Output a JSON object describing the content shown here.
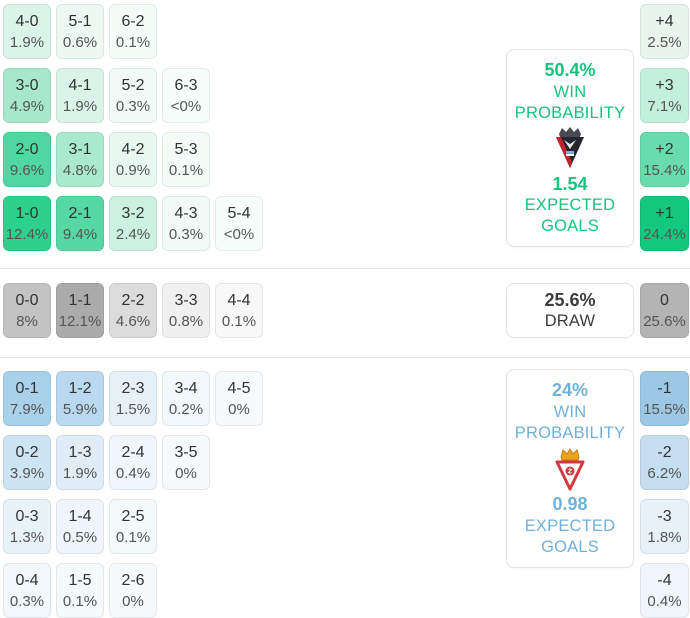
{
  "chart_data": {
    "type": "heatmap",
    "subject": "correct score and goal difference probability matrix",
    "home": {
      "win_probability_pct": 50.4,
      "expected_goals": 1.54,
      "scorelines": {
        "4-0": "1.9%",
        "5-1": "0.6%",
        "6-2": "0.1%",
        "3-0": "4.9%",
        "4-1": "1.9%",
        "5-2": "0.3%",
        "6-3": "<0%",
        "2-0": "9.6%",
        "3-1": "4.8%",
        "4-2": "0.9%",
        "5-3": "0.1%",
        "1-0": "12.4%",
        "2-1": "9.4%",
        "3-2": "2.4%",
        "4-3": "0.3%",
        "5-4": "<0%"
      },
      "goal_difference": {
        "+4": "2.5%",
        "+3": "7.1%",
        "+2": "15.4%",
        "+1": "24.4%"
      }
    },
    "draw": {
      "probability_pct": 25.6,
      "scorelines": {
        "0-0": "8%",
        "1-1": "12.1%",
        "2-2": "4.6%",
        "3-3": "0.8%",
        "4-4": "0.1%"
      },
      "goal_difference": {
        "0": "25.6%"
      }
    },
    "away": {
      "win_probability_pct": 24,
      "expected_goals": 0.98,
      "scorelines": {
        "0-1": "7.9%",
        "1-2": "5.9%",
        "2-3": "1.5%",
        "3-4": "0.2%",
        "4-5": "0%",
        "0-2": "3.9%",
        "1-3": "1.9%",
        "2-4": "0.4%",
        "3-5": "0%",
        "0-3": "1.3%",
        "1-4": "0.5%",
        "2-5": "0.1%",
        "0-4": "0.3%",
        "1-5": "0.1%",
        "2-6": "0%"
      },
      "goal_difference": {
        "-1": "15.5%",
        "-2": "6.2%",
        "-3": "1.8%",
        "-4": "0.4%"
      }
    }
  },
  "sections": {
    "home": {
      "accent": "#16c47c",
      "crest_icon": "mirandes-crest-icon",
      "rows": [
        [
          {
            "label": "4-0",
            "pct": "1.9%",
            "bg": "#daf4e9"
          },
          {
            "label": "5-1",
            "pct": "0.6%",
            "bg": "#ecf9f3"
          },
          {
            "label": "6-2",
            "pct": "0.1%",
            "bg": "#f4fcf8"
          }
        ],
        [
          {
            "label": "3-0",
            "pct": "4.9%",
            "bg": "#a7e8cd"
          },
          {
            "label": "4-1",
            "pct": "1.9%",
            "bg": "#daf4e9"
          },
          {
            "label": "5-2",
            "pct": "0.3%",
            "bg": "#f0faf6"
          },
          {
            "label": "6-3",
            "pct": "<0%",
            "bg": "#f7fdfa"
          }
        ],
        [
          {
            "label": "2-0",
            "pct": "9.6%",
            "bg": "#50d79f"
          },
          {
            "label": "3-1",
            "pct": "4.8%",
            "bg": "#a9e9ce"
          },
          {
            "label": "4-2",
            "pct": "0.9%",
            "bg": "#e7f8f0"
          },
          {
            "label": "5-3",
            "pct": "0.1%",
            "bg": "#f4fcf8"
          }
        ],
        [
          {
            "label": "1-0",
            "pct": "12.4%",
            "bg": "#2ed18c"
          },
          {
            "label": "2-1",
            "pct": "9.4%",
            "bg": "#55d8a2"
          },
          {
            "label": "3-2",
            "pct": "2.4%",
            "bg": "#cbf1e1"
          },
          {
            "label": "4-3",
            "pct": "0.3%",
            "bg": "#f0faf6"
          },
          {
            "label": "5-4",
            "pct": "<0%",
            "bg": "#f7fdfa"
          }
        ]
      ],
      "diffs": [
        {
          "label": "+4",
          "pct": "2.5%",
          "bg": "#e8f5ee"
        },
        {
          "label": "+3",
          "pct": "7.1%",
          "bg": "#c3efdd"
        },
        {
          "label": "+2",
          "pct": "15.4%",
          "bg": "#69dcab"
        },
        {
          "label": "+1",
          "pct": "24.4%",
          "bg": "#13c87c"
        }
      ],
      "card": {
        "win_probability": "50.4%",
        "win_label": "WIN PROBABILITY",
        "expected_goals": "1.54",
        "eg_label": "EXPECTED GOALS"
      }
    },
    "draw": {
      "accent": "#3d3d3d",
      "rows": [
        [
          {
            "label": "0-0",
            "pct": "8%",
            "bg": "#c3c3c3"
          },
          {
            "label": "1-1",
            "pct": "12.1%",
            "bg": "#ababab"
          },
          {
            "label": "2-2",
            "pct": "4.6%",
            "bg": "#dcdcdc"
          },
          {
            "label": "3-3",
            "pct": "0.8%",
            "bg": "#f0f0f0"
          },
          {
            "label": "4-4",
            "pct": "0.1%",
            "bg": "#f8f8f8"
          }
        ]
      ],
      "diffs": [
        {
          "label": "0",
          "pct": "25.6%",
          "bg": "#b4b4b4"
        }
      ],
      "card": {
        "draw_probability": "25.6%",
        "draw_label": "DRAW"
      }
    },
    "away": {
      "accent": "#71b1d9",
      "crest_icon": "sporting-gijon-crest-icon",
      "rows": [
        [
          {
            "label": "0-1",
            "pct": "7.9%",
            "bg": "#a9d1e9"
          },
          {
            "label": "1-2",
            "pct": "5.9%",
            "bg": "#b9daee"
          },
          {
            "label": "2-3",
            "pct": "1.5%",
            "bg": "#e5f0f8"
          },
          {
            "label": "3-4",
            "pct": "0.2%",
            "bg": "#f2f8fc"
          },
          {
            "label": "4-5",
            "pct": "0%",
            "bg": "#f6fafd"
          }
        ],
        [
          {
            "label": "0-2",
            "pct": "3.9%",
            "bg": "#cde4f3"
          },
          {
            "label": "1-3",
            "pct": "1.9%",
            "bg": "#e0edf7"
          },
          {
            "label": "2-4",
            "pct": "0.4%",
            "bg": "#f0f6fb"
          },
          {
            "label": "3-5",
            "pct": "0%",
            "bg": "#f6fafd"
          }
        ],
        [
          {
            "label": "0-3",
            "pct": "1.3%",
            "bg": "#e8f2f9"
          },
          {
            "label": "1-4",
            "pct": "0.5%",
            "bg": "#eff5fb"
          },
          {
            "label": "2-5",
            "pct": "0.1%",
            "bg": "#f4f9fc"
          }
        ],
        [
          {
            "label": "0-4",
            "pct": "0.3%",
            "bg": "#f1f7fb"
          },
          {
            "label": "1-5",
            "pct": "0.1%",
            "bg": "#f4f9fc"
          },
          {
            "label": "2-6",
            "pct": "0%",
            "bg": "#f6fafd"
          }
        ]
      ],
      "diffs": [
        {
          "label": "-1",
          "pct": "15.5%",
          "bg": "#9cc8e6"
        },
        {
          "label": "-2",
          "pct": "6.2%",
          "bg": "#c5def0"
        },
        {
          "label": "-3",
          "pct": "1.8%",
          "bg": "#e6f1f8"
        },
        {
          "label": "-4",
          "pct": "0.4%",
          "bg": "#f0f6fb"
        }
      ],
      "card": {
        "win_probability": "24%",
        "win_label": "WIN PROBABILITY",
        "expected_goals": "0.98",
        "eg_label": "EXPECTED GOALS"
      }
    }
  }
}
